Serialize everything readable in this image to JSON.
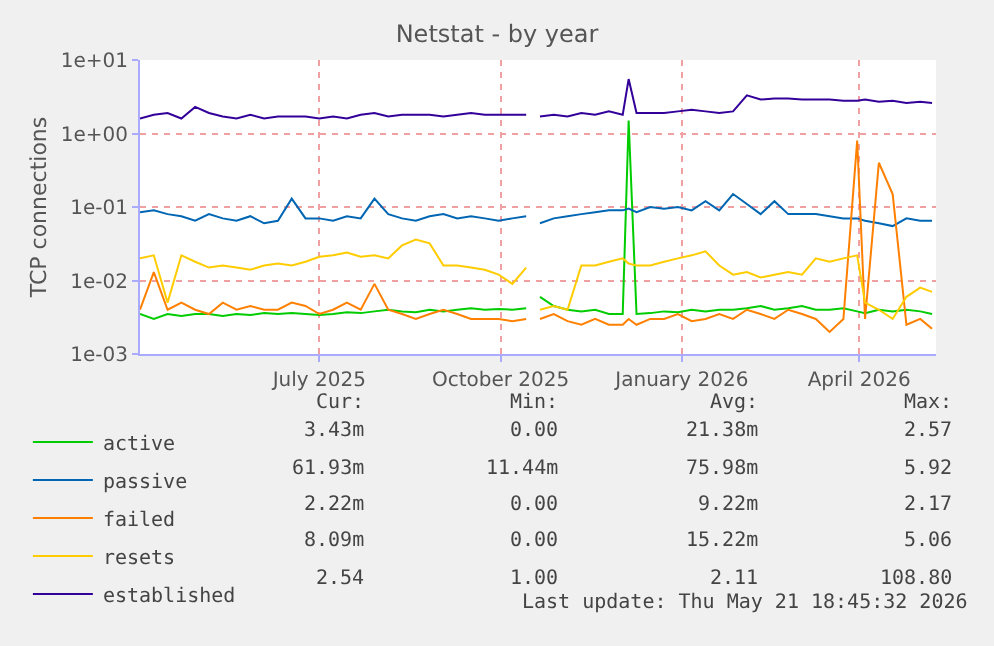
{
  "chart_data": {
    "type": "line",
    "title": "Netstat - by year",
    "ylabel": "TCP connections",
    "log": true,
    "grid": true,
    "legend": "bottom left",
    "x": [
      "2025-04-01",
      "2025-04-08",
      "2025-04-15",
      "2025-04-22",
      "2025-04-29",
      "2025-05-06",
      "2025-05-13",
      "2025-05-20",
      "2025-05-27",
      "2025-06-03",
      "2025-06-10",
      "2025-06-17",
      "2025-06-24",
      "2025-07-01",
      "2025-07-08",
      "2025-07-15",
      "2025-07-22",
      "2025-07-29",
      "2025-08-05",
      "2025-08-12",
      "2025-08-19",
      "2025-08-26",
      "2025-09-02",
      "2025-09-09",
      "2025-09-16",
      "2025-09-23",
      "2025-09-30",
      "2025-10-07",
      "2025-10-14",
      "2025-10-18",
      "2025-10-21",
      "2025-10-28",
      "2025-11-04",
      "2025-11-11",
      "2025-11-18",
      "2025-11-25",
      "2025-12-02",
      "2025-12-05",
      "2025-12-09",
      "2025-12-16",
      "2025-12-23",
      "2025-12-30",
      "2026-01-06",
      "2026-01-13",
      "2026-01-20",
      "2026-01-27",
      "2026-02-03",
      "2026-02-10",
      "2026-02-17",
      "2026-02-24",
      "2026-03-03",
      "2026-03-10",
      "2026-03-17",
      "2026-03-24",
      "2026-03-31",
      "2026-04-04",
      "2026-04-11",
      "2026-04-18",
      "2026-04-25",
      "2026-05-02",
      "2026-05-08"
    ],
    "xlim": [
      "2025-04-01",
      "2026-05-10"
    ],
    "xticks": [
      {
        "value": "2025-07-01",
        "label": "July 2025"
      },
      {
        "value": "2025-10-01",
        "label": "October 2025"
      },
      {
        "value": "2026-01-01",
        "label": "January 2026"
      },
      {
        "value": "2026-04-01",
        "label": "April 2026"
      }
    ],
    "ylim": [
      0.001,
      10
    ],
    "yticks": [
      {
        "value": 0.001,
        "label": "1e-03"
      },
      {
        "value": 0.01,
        "label": "1e-02"
      },
      {
        "value": 0.1,
        "label": "1e-01"
      },
      {
        "value": 1,
        "label": "1e+00"
      },
      {
        "value": 10,
        "label": "1e+01"
      }
    ],
    "series": [
      {
        "name": "active",
        "color": "#00cc00",
        "values": [
          0.0035,
          0.003,
          0.0035,
          0.0033,
          0.0035,
          0.0035,
          0.0033,
          0.0035,
          0.0034,
          0.0036,
          0.0035,
          0.0036,
          0.0035,
          0.0034,
          0.0035,
          0.0037,
          0.0036,
          0.0038,
          0.004,
          0.0038,
          0.0037,
          0.004,
          0.0038,
          0.004,
          0.0042,
          0.004,
          0.0041,
          0.004,
          0.0042,
          null,
          0.006,
          0.0045,
          0.004,
          0.0038,
          0.004,
          0.0035,
          0.0035,
          1.5,
          0.0035,
          0.0036,
          0.0038,
          0.0037,
          0.004,
          0.0038,
          0.004,
          0.004,
          0.0042,
          0.0045,
          0.004,
          0.0042,
          0.0045,
          0.004,
          0.004,
          0.0042,
          0.0038,
          0.0036,
          0.004,
          0.0038,
          0.004,
          0.0038,
          0.0035
        ]
      },
      {
        "name": "passive",
        "color": "#0066b3",
        "values": [
          0.085,
          0.09,
          0.08,
          0.075,
          0.065,
          0.08,
          0.07,
          0.065,
          0.075,
          0.06,
          0.065,
          0.13,
          0.07,
          0.07,
          0.065,
          0.075,
          0.07,
          0.13,
          0.08,
          0.07,
          0.065,
          0.075,
          0.08,
          0.07,
          0.075,
          0.07,
          0.065,
          0.07,
          0.075,
          null,
          0.06,
          0.07,
          0.075,
          0.08,
          0.085,
          0.09,
          0.09,
          0.095,
          0.085,
          0.1,
          0.095,
          0.1,
          0.09,
          0.12,
          0.09,
          0.15,
          0.11,
          0.08,
          0.12,
          0.08,
          0.08,
          0.08,
          0.075,
          0.07,
          0.07,
          0.065,
          0.06,
          0.055,
          0.07,
          0.065,
          0.065
        ]
      },
      {
        "name": "failed",
        "color": "#ff8000",
        "values": [
          0.004,
          0.013,
          0.004,
          0.005,
          0.004,
          0.0035,
          0.005,
          0.004,
          0.0045,
          0.004,
          0.004,
          0.005,
          0.0045,
          0.0035,
          0.004,
          0.005,
          0.004,
          0.009,
          0.004,
          0.0035,
          0.003,
          0.0035,
          0.004,
          0.0035,
          0.003,
          0.003,
          0.003,
          0.0028,
          0.003,
          null,
          0.003,
          0.0035,
          0.0028,
          0.0025,
          0.003,
          0.0025,
          0.0025,
          0.003,
          0.0025,
          0.003,
          0.003,
          0.0035,
          0.0028,
          0.003,
          0.0035,
          0.003,
          0.004,
          0.0035,
          0.003,
          0.004,
          0.0035,
          0.003,
          0.002,
          0.003,
          0.8,
          0.003,
          0.4,
          0.15,
          0.0025,
          0.003,
          0.0022
        ]
      },
      {
        "name": "resets",
        "color": "#ffcc00",
        "values": [
          0.02,
          0.022,
          0.005,
          0.022,
          0.018,
          0.015,
          0.016,
          0.015,
          0.014,
          0.016,
          0.017,
          0.016,
          0.018,
          0.021,
          0.022,
          0.024,
          0.021,
          0.022,
          0.02,
          0.03,
          0.036,
          0.032,
          0.016,
          0.016,
          0.015,
          0.014,
          0.012,
          0.009,
          0.015,
          null,
          0.004,
          0.0045,
          0.004,
          0.016,
          0.016,
          0.018,
          0.02,
          0.017,
          0.016,
          0.016,
          0.018,
          0.02,
          0.022,
          0.025,
          0.016,
          0.012,
          0.013,
          0.011,
          0.012,
          0.013,
          0.012,
          0.02,
          0.018,
          0.02,
          0.022,
          0.005,
          0.004,
          0.003,
          0.006,
          0.008,
          0.007
        ]
      },
      {
        "name": "established",
        "color": "#330099",
        "values": [
          1.6,
          1.8,
          1.9,
          1.6,
          2.3,
          1.9,
          1.7,
          1.6,
          1.8,
          1.6,
          1.7,
          1.7,
          1.7,
          1.6,
          1.7,
          1.6,
          1.8,
          1.9,
          1.7,
          1.8,
          1.8,
          1.8,
          1.7,
          1.8,
          1.9,
          1.8,
          1.8,
          1.8,
          1.8,
          null,
          1.7,
          1.8,
          1.7,
          1.9,
          1.8,
          2.0,
          1.8,
          5.5,
          1.9,
          1.9,
          1.9,
          2.0,
          2.1,
          2.0,
          1.9,
          2.0,
          3.3,
          2.9,
          3.0,
          3.0,
          2.9,
          2.9,
          2.9,
          2.8,
          2.8,
          2.9,
          2.7,
          2.8,
          2.6,
          2.7,
          2.6
        ]
      }
    ],
    "annotations": [
      "Cur:",
      "Min:",
      "Avg:",
      "Max:",
      "3.43m",
      "0.00",
      "21.38m",
      "2.57",
      "61.93m",
      "11.44m",
      "75.98m",
      "5.92",
      "2.22m",
      "0.00",
      "9.22m",
      "2.17",
      "8.09m",
      "0.00",
      "15.22m",
      "5.06",
      "2.54",
      "1.00",
      "2.11",
      "108.80",
      "Last update: Thu May 21 18:45:32 2026"
    ]
  }
}
